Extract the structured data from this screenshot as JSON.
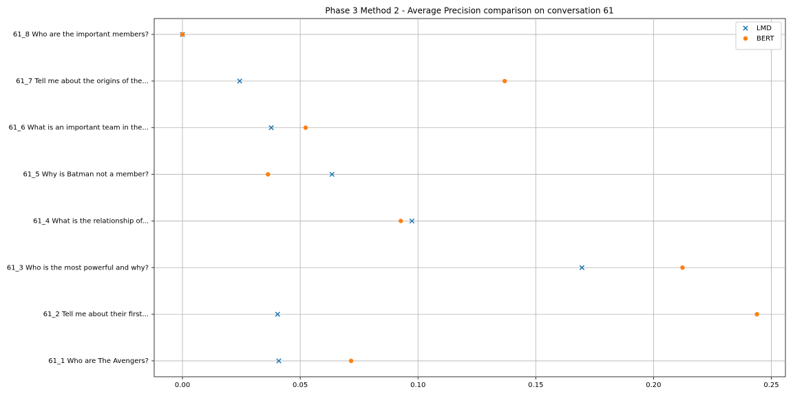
{
  "chart_data": {
    "type": "scatter",
    "title": "Phase 3 Method 2 - Average Precision comparison on conversation 61",
    "categories": [
      "61_1 Who are The Avengers?",
      "61_2 Tell me about their first...",
      "61_3 Who is the most powerful and why?",
      "61_4 What is the relationship of...",
      "61_5 Why is Batman not a member?",
      "61_6 What is an important team in the...",
      "61_7 Tell me about the origins of the...",
      "61_8 Who are the important members?"
    ],
    "series": [
      {
        "name": "LMD",
        "color": "#1f77b4",
        "marker": "x",
        "values": [
          0.0409,
          0.0404,
          0.1696,
          0.0974,
          0.0635,
          0.0377,
          0.0243,
          0.0
        ]
      },
      {
        "name": "BERT",
        "color": "#ff7f0e",
        "marker": "o",
        "values": [
          0.0716,
          0.2439,
          0.2123,
          0.0927,
          0.0363,
          0.0523,
          0.1368,
          0.0
        ]
      }
    ],
    "xlim": [
      -0.012,
      0.256
    ],
    "xticks": [
      {
        "value": 0,
        "label": "0.00"
      },
      {
        "value": 0.05,
        "label": "0.05"
      },
      {
        "value": 0.1,
        "label": "0.10"
      },
      {
        "value": 0.15,
        "label": "0.15"
      },
      {
        "value": 0.2,
        "label": "0.20"
      },
      {
        "value": 0.25,
        "label": "0.25"
      }
    ],
    "grid": true,
    "legend": "upper right"
  }
}
